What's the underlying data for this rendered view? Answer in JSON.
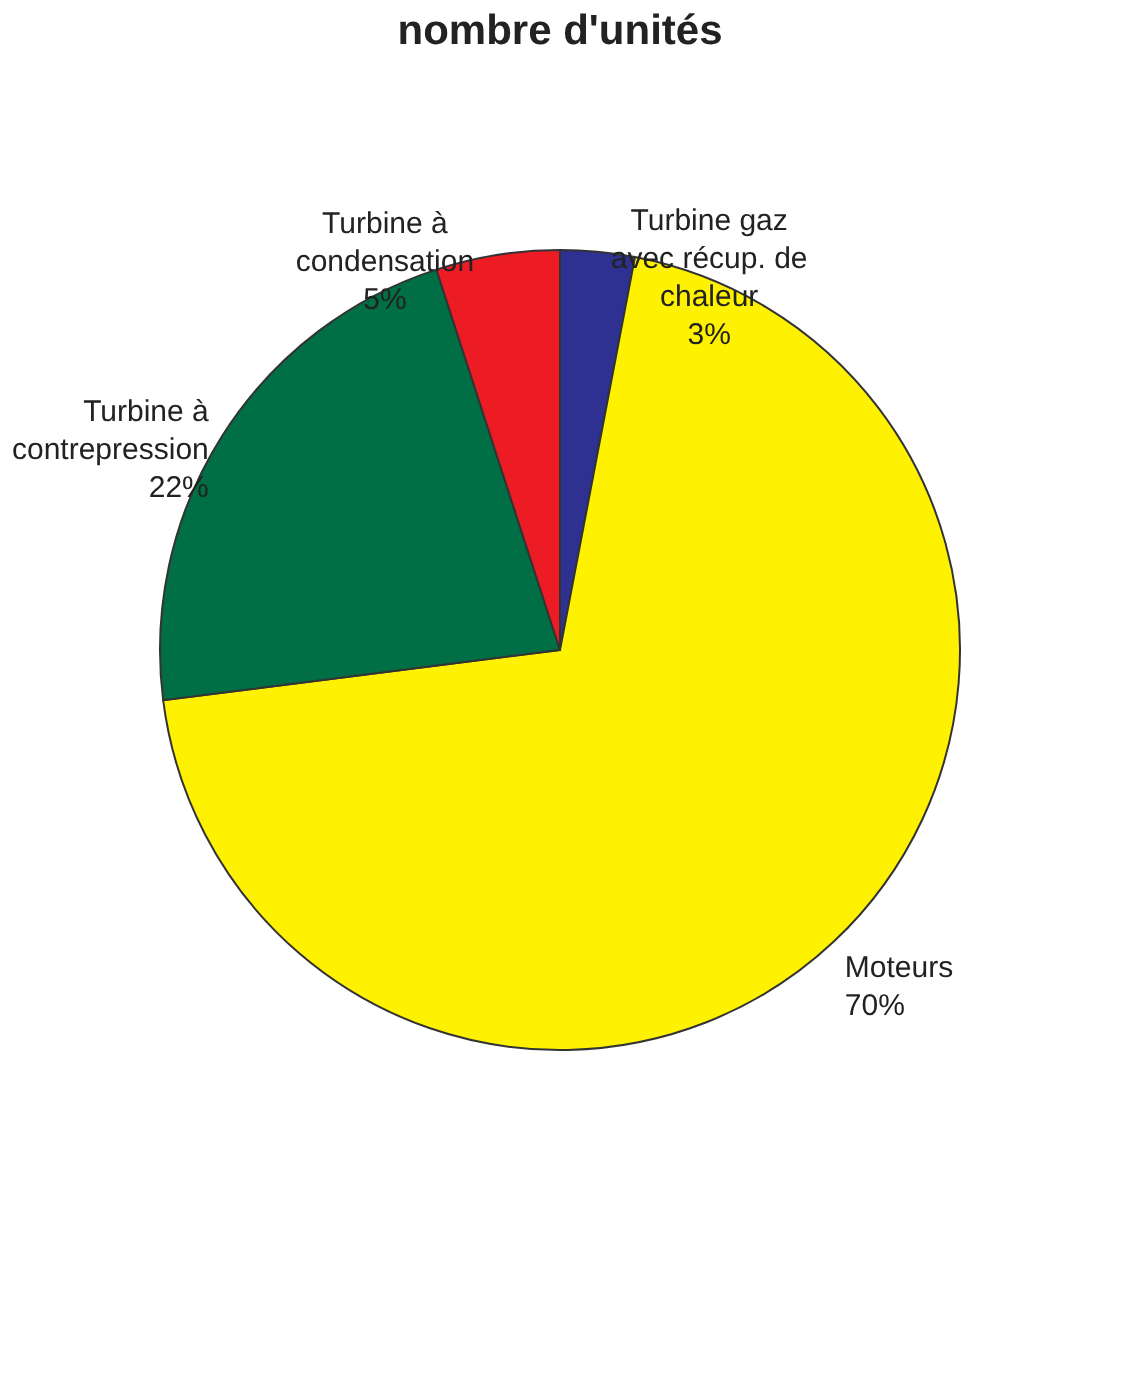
{
  "chart_data": {
    "type": "pie",
    "title": "nombre d'unités",
    "categories": [
      "Turbine gaz\navec récup. de\nchaleur",
      "Moteurs",
      "Turbine à\ncontrepression",
      "Turbine à\ncondensation"
    ],
    "values": [
      3,
      70,
      22,
      5
    ],
    "value_labels": [
      "3%",
      "70%",
      "22%",
      "5%"
    ],
    "colors": [
      "#2e3192",
      "#fff200",
      "#006f45",
      "#ed1c24"
    ],
    "legend": false
  }
}
